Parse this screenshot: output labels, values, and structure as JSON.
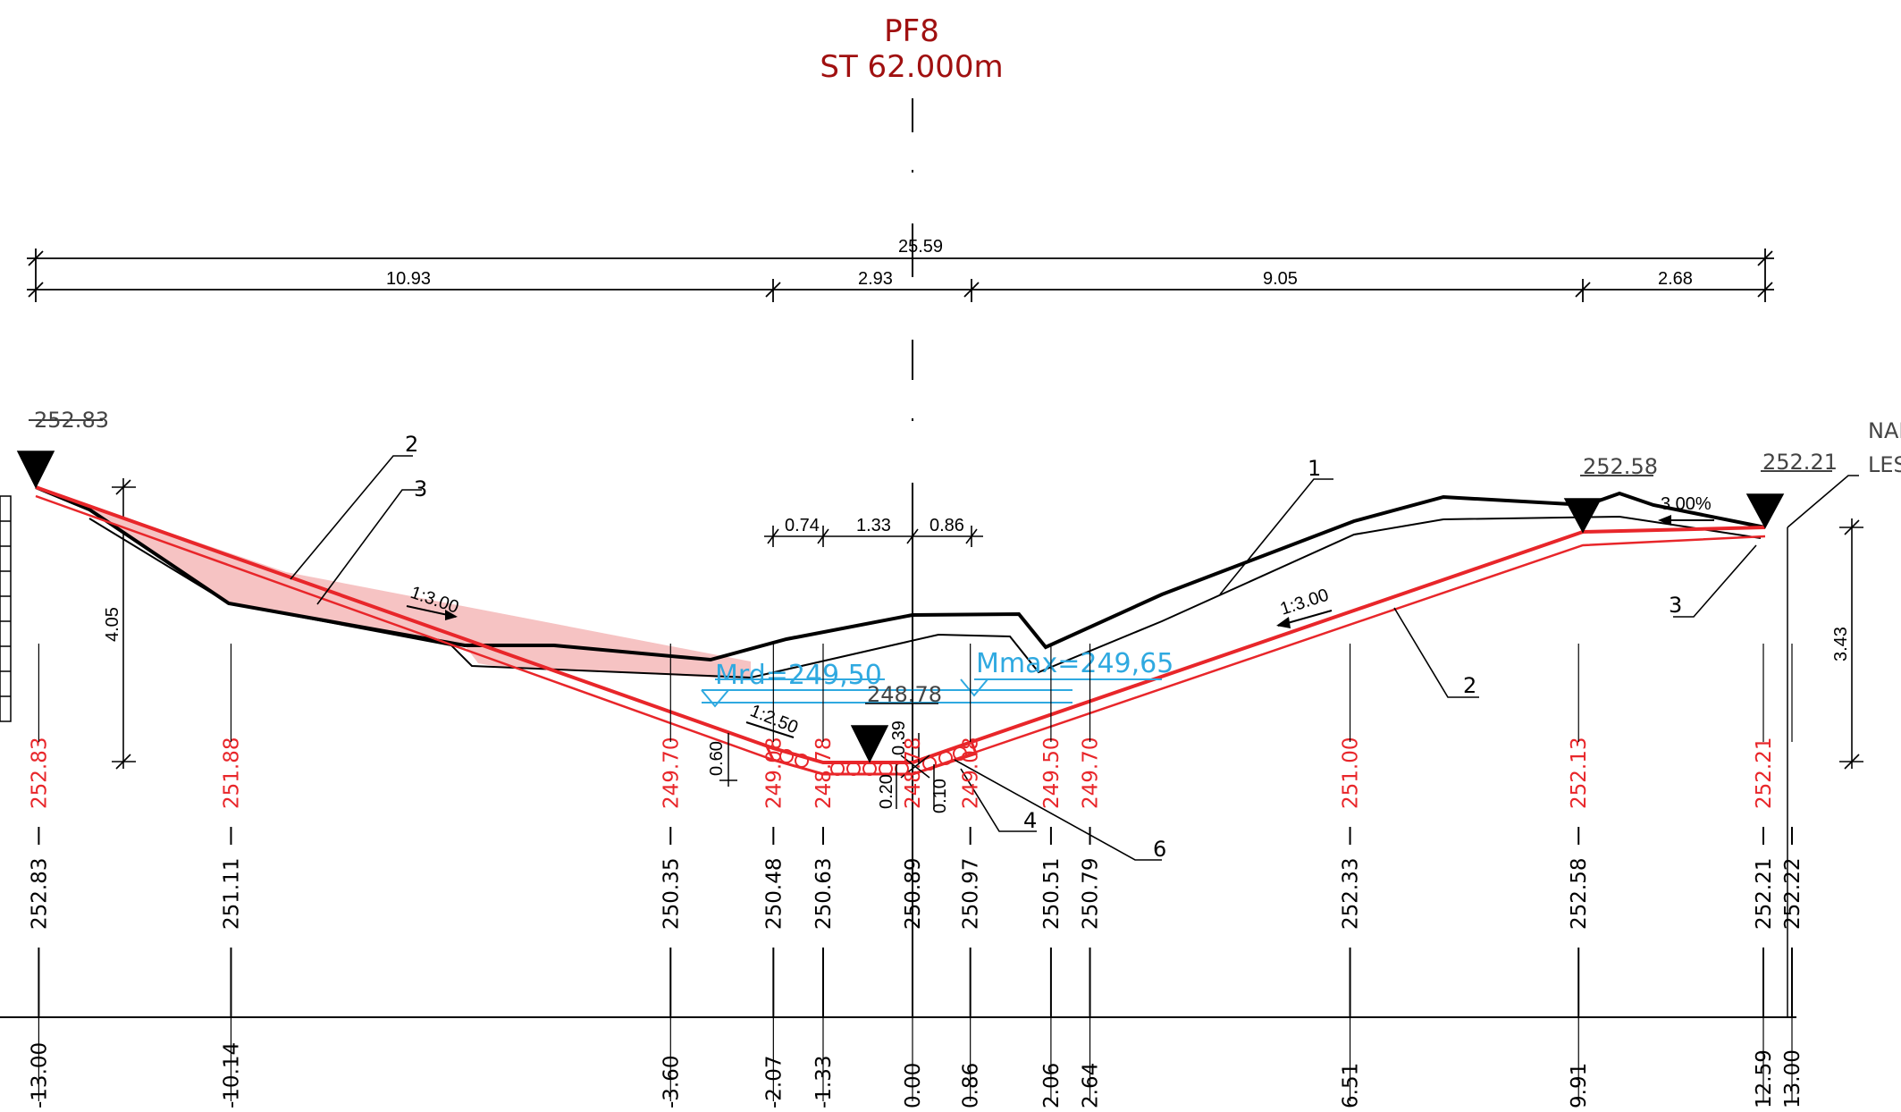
{
  "title": {
    "profile": "PF8",
    "station": "ST 62.000m"
  },
  "dimensions": {
    "total": "25.59",
    "segments": [
      "10.93",
      "2.93",
      "9.05",
      "2.68"
    ],
    "channel": [
      "0.74",
      "1.33",
      "0.86"
    ],
    "height_left": "4.05",
    "height_right": "3.43",
    "depth_bottom": "0.60",
    "depth_bed": "0.20",
    "depth_small": "0.10",
    "depth_center": "0.39"
  },
  "levels": {
    "top_left": "252.83",
    "top_mid_right": "252.58",
    "top_right": "252.21",
    "bottom": "248.78",
    "water_mid": "Mrd=249,50",
    "water_max": "Mmax=249,65"
  },
  "slopes": {
    "left_upper": "1:3.00",
    "right": "1:3.00",
    "bottom_left": "1:2.50",
    "crossfall": "3.00%"
  },
  "callouts": [
    "1",
    "2",
    "3",
    "2",
    "3",
    "4",
    "6"
  ],
  "side_labels": [
    "NAPO",
    "LESN"
  ],
  "stations": [
    {
      "offset": "-13.00",
      "design": "252.83",
      "terrain": "252.83"
    },
    {
      "offset": "-10.14",
      "design": "251.88",
      "terrain": "251.11"
    },
    {
      "offset": "-3.60",
      "design": "249.70",
      "terrain": "250.35"
    },
    {
      "offset": "-2.07",
      "design": "249.08",
      "terrain": "250.48"
    },
    {
      "offset": "-1.33",
      "design": "248.78",
      "terrain": "250.63"
    },
    {
      "offset": "0.00",
      "design": "248.78",
      "terrain": "250.89"
    },
    {
      "offset": "0.86",
      "design": "249.08",
      "terrain": "250.97"
    },
    {
      "offset": "2.06",
      "design": "249.50",
      "terrain": "250.51"
    },
    {
      "offset": "2.64",
      "design": "249.70",
      "terrain": "250.79"
    },
    {
      "offset": "6.51",
      "design": "251.00",
      "terrain": "252.33"
    },
    {
      "offset": "9.91",
      "design": "252.13",
      "terrain": "252.58"
    },
    {
      "offset": "12.59",
      "design": "252.21",
      "terrain": "252.21"
    },
    {
      "offset": "13.00",
      "design": "",
      "terrain": "252.22"
    }
  ],
  "colors": {
    "design_line": "#e8262a",
    "fill": "#f6c3c3",
    "terrain": "#000000",
    "water": "#2fa9e0",
    "title": "#a01010"
  }
}
